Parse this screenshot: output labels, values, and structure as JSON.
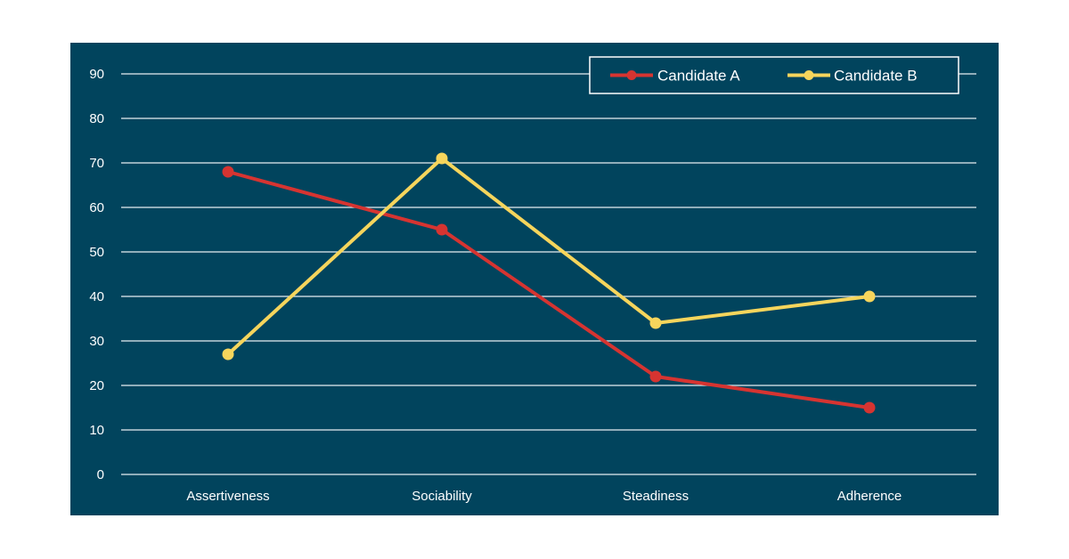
{
  "colors": {
    "background": "#01445d",
    "grid": "#e8eef2",
    "text": "#ffffff",
    "candidate_a": "#d63431",
    "candidate_b": "#f6d55c"
  },
  "chart_data": {
    "type": "line",
    "title": "",
    "xlabel": "",
    "ylabel": "",
    "categories": [
      "Assertiveness",
      "Sociability",
      "Steadiness",
      "Adherence"
    ],
    "series": [
      {
        "name": "Candidate A",
        "color": "#d63431",
        "values": [
          68,
          55,
          22,
          15
        ]
      },
      {
        "name": "Candidate B",
        "color": "#f6d55c",
        "values": [
          27,
          71,
          34,
          40
        ]
      }
    ],
    "ylim": [
      0,
      90
    ],
    "yticks": [
      0,
      10,
      20,
      30,
      40,
      50,
      60,
      70,
      80,
      90
    ],
    "grid": true,
    "legend": "top-right",
    "markers": true
  }
}
